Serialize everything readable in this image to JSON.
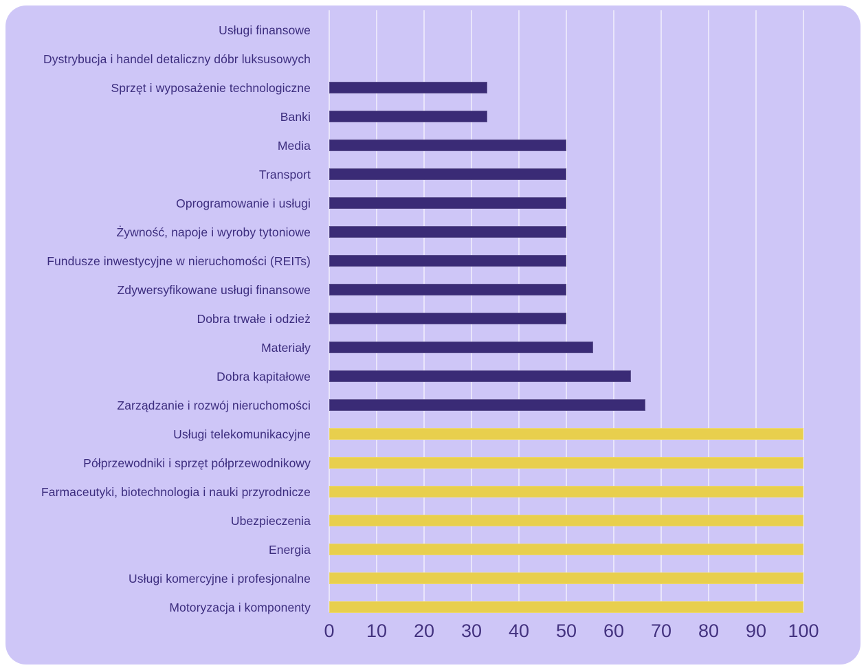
{
  "panel": {
    "background_color": "#cec6f7",
    "page_background_color": "#ffffff"
  },
  "chart_data": {
    "type": "bar",
    "orientation": "horizontal",
    "title": "",
    "xlabel": "",
    "ylabel": "",
    "xlim": [
      0,
      100
    ],
    "x_ticks": [
      0,
      10,
      20,
      30,
      40,
      50,
      60,
      70,
      80,
      90,
      100
    ],
    "grid": "vertical",
    "legend": "none",
    "colors": {
      "purple_bar": "#3a2b76",
      "yellow_bar": "#e8cf4d",
      "gridline": "rgba(255,255,255,0.55)",
      "label_text": "#3c2d7e",
      "tick_text": "#43327f"
    },
    "categories": [
      "Usługi finansowe",
      "Dystrybucja i handel detaliczny dóbr luksusowych",
      "Sprzęt i wyposażenie technologiczne",
      "Banki",
      "Media",
      "Transport",
      "Oprogramowanie i usługi",
      "Żywność, napoje i wyroby tytoniowe",
      "Fundusze inwestycyjne w nieruchomości (REITs)",
      "Zdywersyfikowane usługi finansowe",
      "Dobra trwałe i odzież",
      "Materiały",
      "Dobra kapitałowe",
      "Zarządzanie i rozwój nieruchomości",
      "Usługi telekomunikacyjne",
      "Półprzewodniki i sprzęt półprzewodnikowy",
      "Farmaceutyki, biotechnologia i nauki przyrodnicze",
      "Ubezpieczenia",
      "Energia",
      "Usługi komercyjne i profesjonalne",
      "Motoryzacja i komponenty"
    ],
    "values": [
      0,
      0,
      33.3,
      33.3,
      50,
      50,
      50,
      50,
      50,
      50,
      50,
      55.6,
      63.6,
      66.7,
      100,
      100,
      100,
      100,
      100,
      100,
      100
    ],
    "bar_colors": [
      "#3a2b76",
      "#3a2b76",
      "#3a2b76",
      "#3a2b76",
      "#3a2b76",
      "#3a2b76",
      "#3a2b76",
      "#3a2b76",
      "#3a2b76",
      "#3a2b76",
      "#3a2b76",
      "#3a2b76",
      "#3a2b76",
      "#3a2b76",
      "#e8cf4d",
      "#e8cf4d",
      "#e8cf4d",
      "#e8cf4d",
      "#e8cf4d",
      "#e8cf4d",
      "#e8cf4d"
    ]
  }
}
